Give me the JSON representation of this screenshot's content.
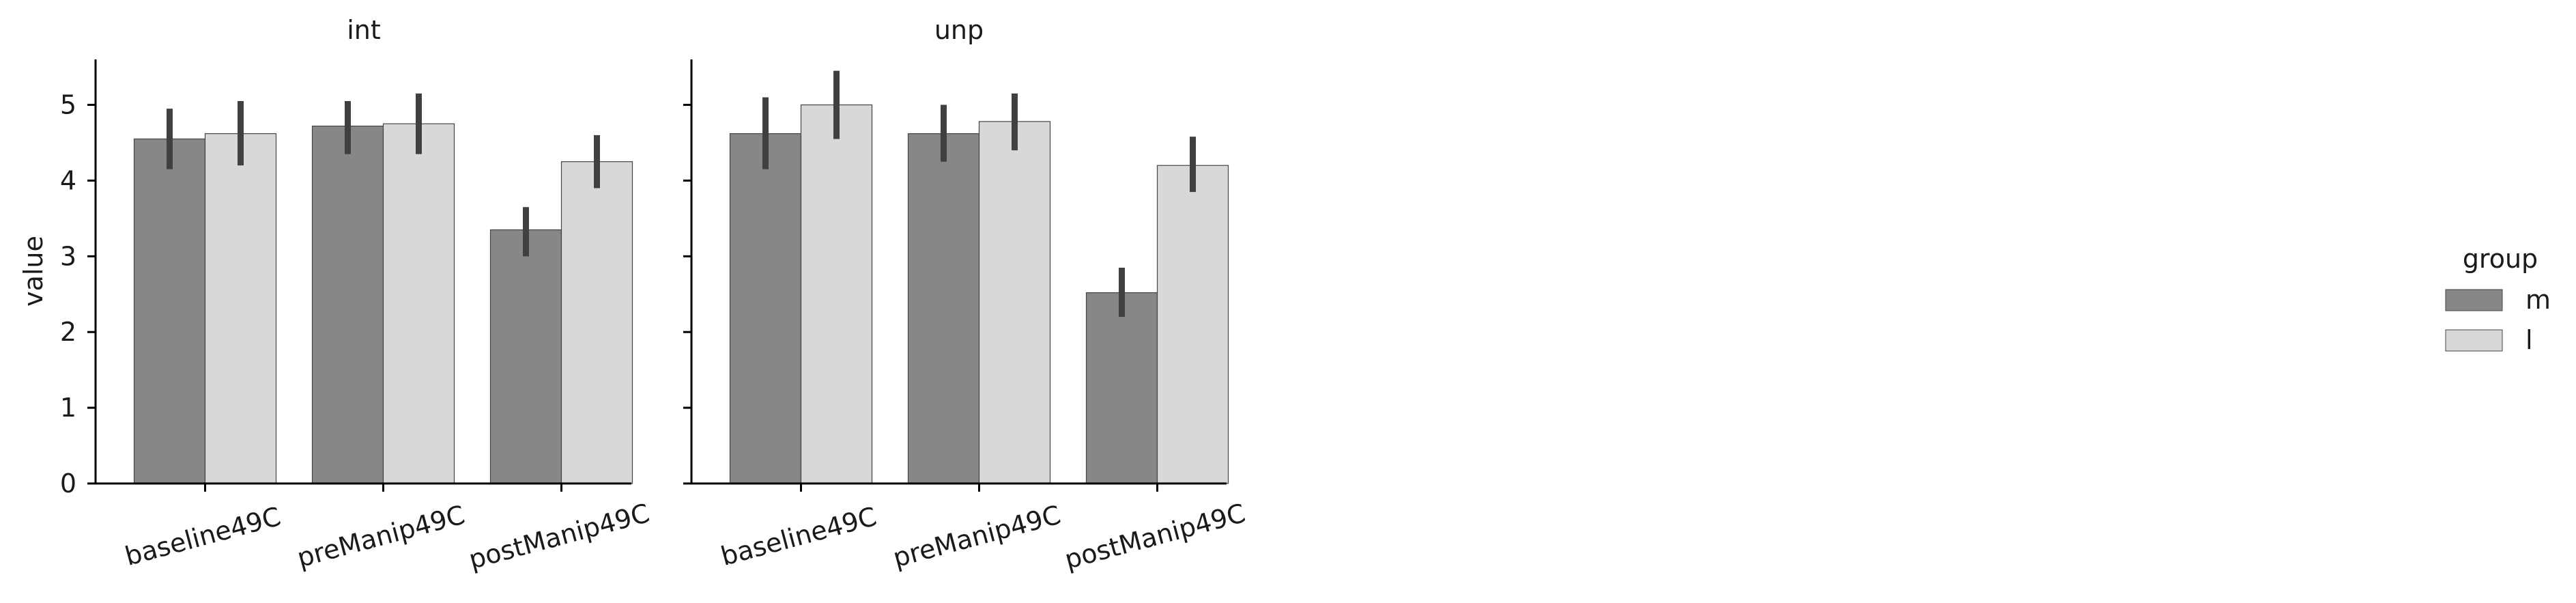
{
  "chart_data": {
    "type": "bar",
    "facet_titles": [
      "int",
      "unp"
    ],
    "categories": [
      "baseline49C",
      "preManip49C",
      "postManip49C"
    ],
    "ylabel": "value",
    "xlabel": "",
    "ylim": [
      0,
      5.6
    ],
    "yticks": [
      0,
      1,
      2,
      3,
      4,
      5
    ],
    "grid": false,
    "legend": {
      "title": "group",
      "placement": "right",
      "entries": [
        "m",
        "l"
      ]
    },
    "colors": {
      "m": "#878787",
      "l": "#d8d8d8",
      "error_bar": "#404040",
      "bar_edge": "#454545"
    },
    "panels": [
      {
        "title": "int",
        "series": [
          {
            "name": "m",
            "values": [
              4.55,
              4.72,
              3.35
            ],
            "ci_low": [
              4.15,
              4.35,
              3.0
            ],
            "ci_high": [
              4.95,
              5.05,
              3.65
            ]
          },
          {
            "name": "l",
            "values": [
              4.62,
              4.75,
              4.25
            ],
            "ci_low": [
              4.2,
              4.35,
              3.9
            ],
            "ci_high": [
              5.05,
              5.15,
              4.6
            ]
          }
        ]
      },
      {
        "title": "unp",
        "series": [
          {
            "name": "m",
            "values": [
              4.62,
              4.62,
              2.52
            ],
            "ci_low": [
              4.15,
              4.25,
              2.2
            ],
            "ci_high": [
              5.1,
              5.0,
              2.85
            ]
          },
          {
            "name": "l",
            "values": [
              5.0,
              4.78,
              4.2
            ],
            "ci_low": [
              4.55,
              4.4,
              3.85
            ],
            "ci_high": [
              5.45,
              5.15,
              4.58
            ]
          }
        ]
      }
    ]
  }
}
